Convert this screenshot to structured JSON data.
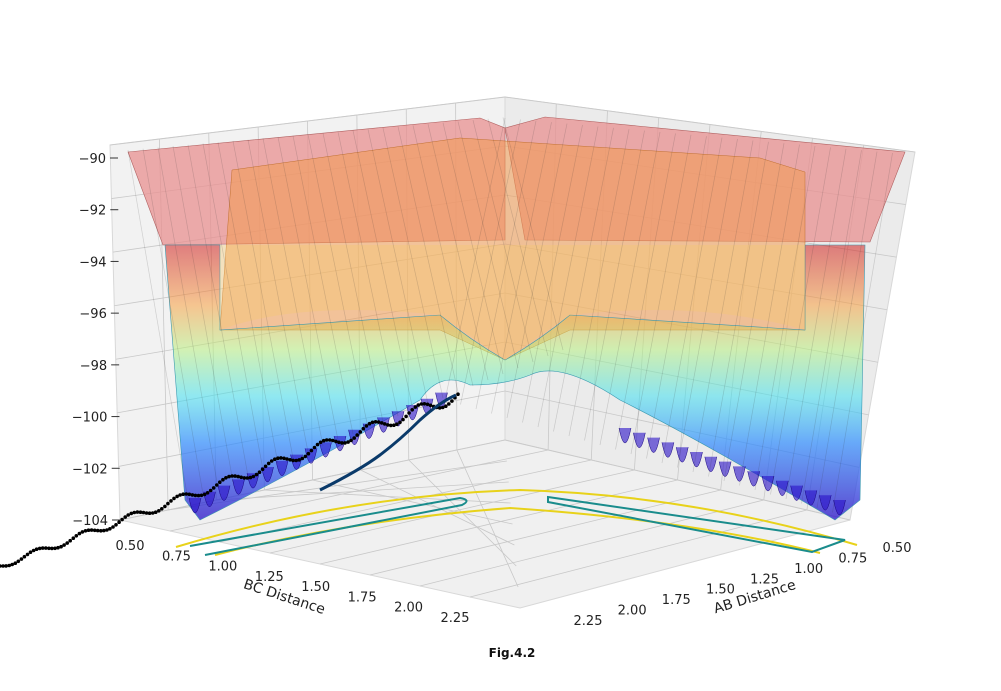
{
  "caption": "Fig.4.2",
  "chart_data": {
    "type": "surface",
    "title": "",
    "xlabel": "AB Distance",
    "ylabel": "BC Distance",
    "zlabel": "",
    "x_ticks": [
      "0.50",
      "0.75",
      "1.00",
      "1.25",
      "1.50",
      "1.75",
      "2.00",
      "2.25"
    ],
    "y_ticks": [
      "0.50",
      "0.75",
      "1.00",
      "1.25",
      "1.50",
      "1.75",
      "2.00",
      "2.25"
    ],
    "z_ticks": [
      "−104",
      "−102",
      "−100",
      "−98",
      "−96",
      "−94",
      "−92",
      "−90"
    ],
    "xlim": [
      0.4,
      2.4
    ],
    "ylim": [
      0.4,
      2.4
    ],
    "zlim": [
      -104,
      -90
    ],
    "grid": true,
    "colormap": "jet",
    "contour_colors": [
      "#1a8c8c",
      "#e8d21a"
    ],
    "trajectory_color": "#000000"
  }
}
